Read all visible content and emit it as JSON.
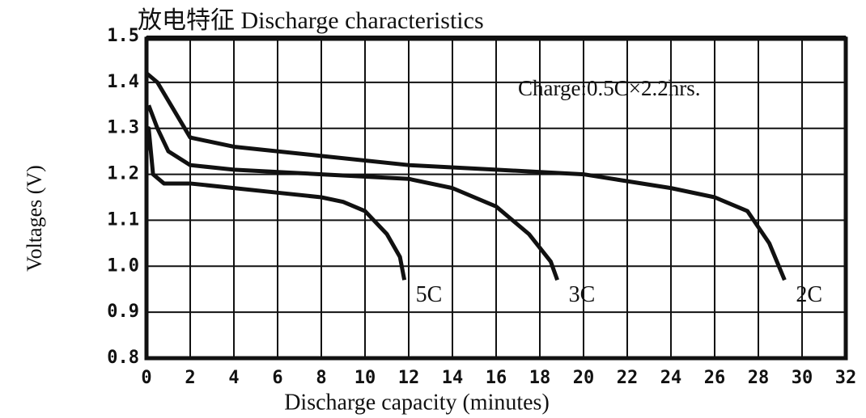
{
  "chart_data": {
    "type": "line",
    "title": "放电特征 Discharge characteristics",
    "xlabel": "Discharge capacity (minutes)",
    "ylabel": "Voltages (V)",
    "annotation": "Charge:0.5C×2.2hrs.",
    "xlim": [
      0,
      32
    ],
    "ylim": [
      0.8,
      1.5
    ],
    "xticks": [
      0,
      2,
      4,
      6,
      8,
      10,
      12,
      14,
      16,
      18,
      20,
      22,
      24,
      26,
      28,
      30,
      32
    ],
    "yticks": [
      0.8,
      0.9,
      {
        "value": 1,
        "label": "1.0"
      },
      1.1,
      1.2,
      1.3,
      1.4,
      1.5
    ],
    "grid": true,
    "series": [
      {
        "name": "5C",
        "color": "#111111",
        "x": [
          0,
          0.1,
          0.3,
          0.8,
          2,
          4,
          6,
          8,
          9,
          10,
          11,
          11.6,
          11.8
        ],
        "values": [
          1.25,
          1.3,
          1.2,
          1.18,
          1.18,
          1.17,
          1.16,
          1.15,
          1.14,
          1.12,
          1.07,
          1.02,
          0.97
        ]
      },
      {
        "name": "3C",
        "color": "#111111",
        "x": [
          0.1,
          0.5,
          1,
          2,
          4,
          8,
          12,
          14,
          16,
          17.5,
          18.5,
          18.8
        ],
        "values": [
          1.35,
          1.3,
          1.25,
          1.22,
          1.21,
          1.2,
          1.19,
          1.17,
          1.13,
          1.07,
          1.01,
          0.97
        ]
      },
      {
        "name": "2C",
        "color": "#111111",
        "x": [
          0,
          0.5,
          1,
          2,
          4,
          8,
          12,
          16,
          20,
          24,
          26,
          27.5,
          28.5,
          29.2
        ],
        "values": [
          1.42,
          1.4,
          1.36,
          1.28,
          1.26,
          1.24,
          1.22,
          1.21,
          1.2,
          1.17,
          1.15,
          1.12,
          1.05,
          0.97
        ]
      }
    ]
  }
}
